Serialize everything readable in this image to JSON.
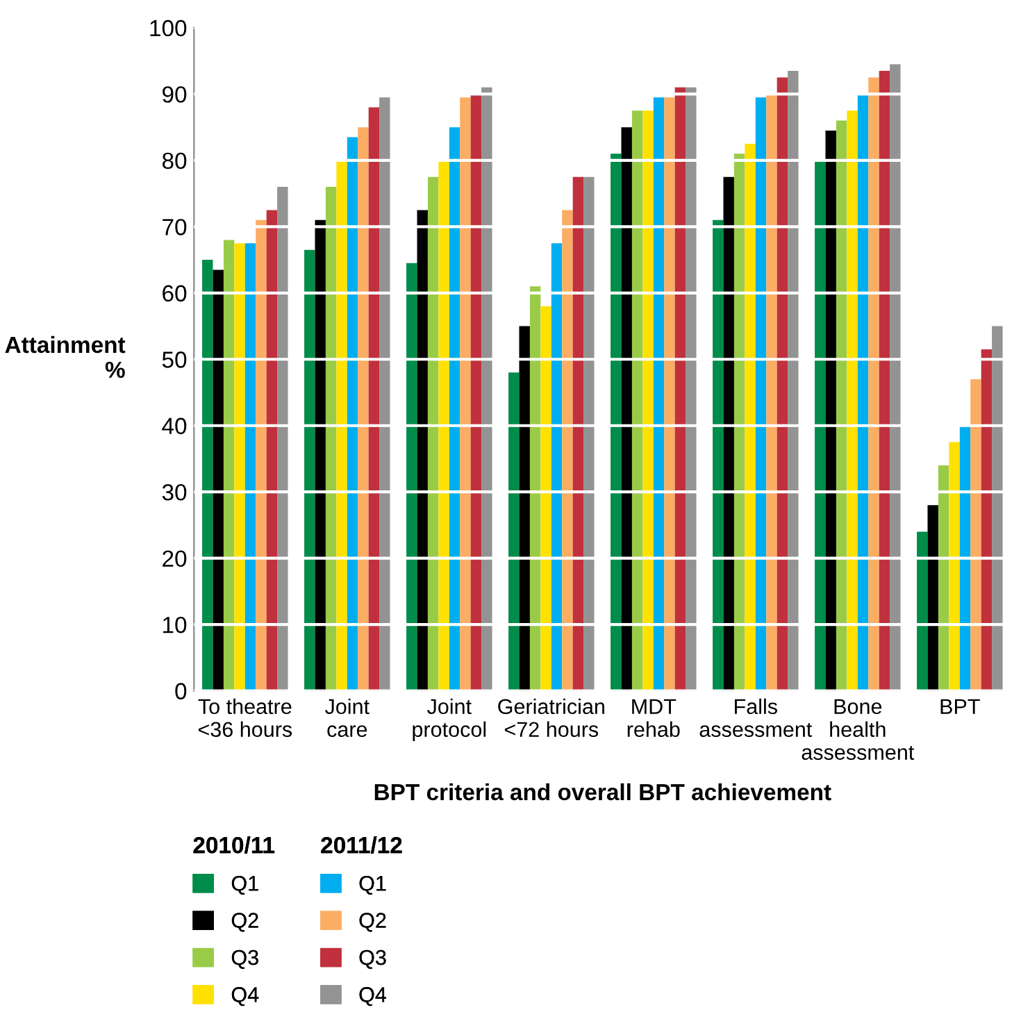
{
  "chart_data": {
    "type": "bar",
    "xlabel": "BPT criteria and overall BPT achievement",
    "ylabel": "Attainment\n%",
    "categories": [
      "To theatre\n<36 hours",
      "Joint\ncare",
      "Joint\nprotocol",
      "Geriatrician\n<72 hours",
      "MDT\nrehab",
      "Falls\nassessment",
      "Bone\nhealth\nassessment",
      "BPT"
    ],
    "series": [
      {
        "name": "Q1",
        "color": "#008c4a",
        "values": [
          65,
          66.5,
          64.5,
          48,
          81,
          71,
          80,
          24
        ]
      },
      {
        "name": "Q2",
        "color": "#000000",
        "values": [
          63.5,
          71,
          72.5,
          55,
          85,
          77.5,
          84.5,
          28
        ]
      },
      {
        "name": "Q3",
        "color": "#9acb48",
        "values": [
          68,
          76,
          77.5,
          61,
          87.5,
          81,
          86,
          34
        ]
      },
      {
        "name": "Q4",
        "color": "#ffe100",
        "values": [
          67.5,
          80,
          80,
          58,
          87.5,
          82.5,
          87.5,
          37.5
        ]
      },
      {
        "name": "Q1",
        "color": "#00aeef",
        "values": [
          67.5,
          83.5,
          85,
          67.5,
          89.5,
          89.5,
          90,
          40
        ]
      },
      {
        "name": "Q2",
        "color": "#fbad63",
        "values": [
          71,
          85,
          89.5,
          72.5,
          89.5,
          90,
          92.5,
          47
        ]
      },
      {
        "name": "Q3",
        "color": "#c0313d",
        "values": [
          72.5,
          88,
          90,
          77.5,
          91,
          92.5,
          93.5,
          51.5
        ]
      },
      {
        "name": "Q4",
        "color": "#939393",
        "values": [
          76,
          89.5,
          91,
          77.5,
          91,
          93.5,
          94.5,
          55
        ]
      }
    ],
    "ylim": [
      0,
      100
    ],
    "yticks": [
      0,
      10,
      20,
      30,
      40,
      50,
      60,
      70,
      80,
      90,
      100
    ],
    "grid": "y",
    "legend": "bottom left",
    "annotations": [
      "2010/11",
      "2011/12"
    ]
  }
}
